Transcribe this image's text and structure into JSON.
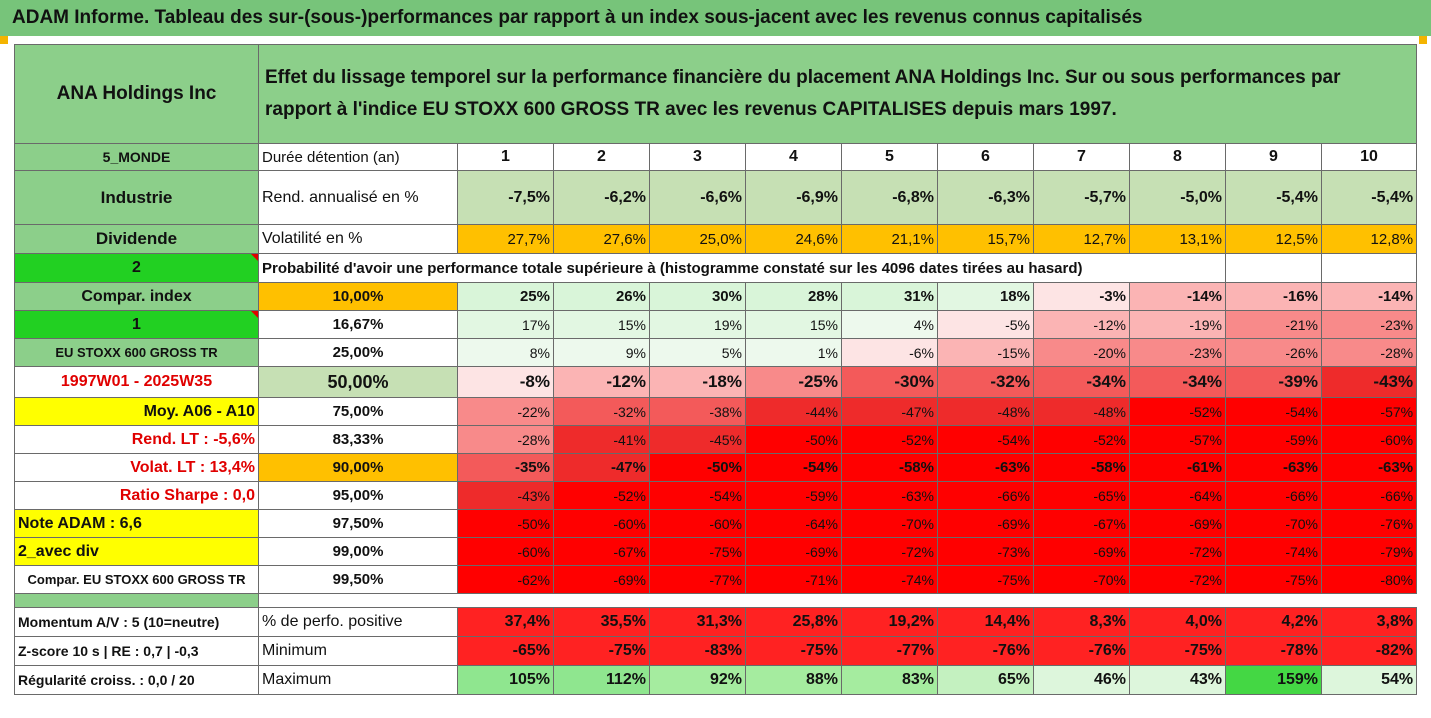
{
  "header": {
    "title": "ADAM Informe. Tableau des sur-(sous-)performances par rapport à un index sous-jacent avec les revenus connus capitalisés"
  },
  "company": "ANA Holdings Inc",
  "description": "Effet du lissage temporel sur la performance financière du placement ANA Holdings Inc. Sur ou sous performances par rapport à l'indice EU STOXX 600 GROSS TR avec les revenus CAPITALISES depuis mars 1997.",
  "years_row": {
    "left": "5_MONDE",
    "label": "Durée détention (an)",
    "values": [
      "1",
      "2",
      "3",
      "4",
      "5",
      "6",
      "7",
      "8",
      "9",
      "10"
    ]
  },
  "rend_row": {
    "left": "Industrie",
    "label": "Rend. annualisé en %",
    "values": [
      "-7,5%",
      "-6,2%",
      "-6,6%",
      "-6,9%",
      "-6,8%",
      "-6,3%",
      "-5,7%",
      "-5,0%",
      "-5,4%",
      "-5,4%"
    ]
  },
  "vol_row": {
    "left": "Dividende",
    "label": "Volatilité en %",
    "values": [
      "27,7%",
      "27,6%",
      "25,0%",
      "24,6%",
      "21,1%",
      "15,7%",
      "12,7%",
      "13,1%",
      "12,5%",
      "12,8%"
    ]
  },
  "prob_row": {
    "left": "2",
    "text": "Probabilité d'avoir une performance totale supérieure à (histogramme constaté sur les 4096 dates tirées au hasard)"
  },
  "percentile_rows": [
    {
      "left": "Compar. index",
      "pct": "10,00%",
      "values": [
        "25%",
        "26%",
        "30%",
        "28%",
        "31%",
        "18%",
        "-3%",
        "-14%",
        "-16%",
        "-14%"
      ]
    },
    {
      "left": "1",
      "pct": "16,67%",
      "values": [
        "17%",
        "15%",
        "19%",
        "15%",
        "4%",
        "-5%",
        "-12%",
        "-19%",
        "-21%",
        "-23%"
      ]
    },
    {
      "left": "EU STOXX 600 GROSS TR",
      "pct": "25,00%",
      "values": [
        "8%",
        "9%",
        "5%",
        "1%",
        "-6%",
        "-15%",
        "-20%",
        "-23%",
        "-26%",
        "-28%"
      ]
    },
    {
      "left": "1997W01 - 2025W35",
      "pct": "50,00%",
      "values": [
        "-8%",
        "-12%",
        "-18%",
        "-25%",
        "-30%",
        "-32%",
        "-34%",
        "-34%",
        "-39%",
        "-43%"
      ]
    },
    {
      "left": "Moy. A06 - A10",
      "pct": "75,00%",
      "values": [
        "-22%",
        "-32%",
        "-38%",
        "-44%",
        "-47%",
        "-48%",
        "-48%",
        "-52%",
        "-54%",
        "-57%"
      ]
    },
    {
      "left": "Rend. LT :   -5,6%",
      "pct": "83,33%",
      "values": [
        "-28%",
        "-41%",
        "-45%",
        "-50%",
        "-52%",
        "-54%",
        "-52%",
        "-57%",
        "-59%",
        "-60%"
      ]
    },
    {
      "left": "Volat. LT :   13,4%",
      "pct": "90,00%",
      "values": [
        "-35%",
        "-47%",
        "-50%",
        "-54%",
        "-58%",
        "-63%",
        "-58%",
        "-61%",
        "-63%",
        "-63%"
      ]
    },
    {
      "left": "Ratio Sharpe :   0,0",
      "pct": "95,00%",
      "values": [
        "-43%",
        "-52%",
        "-54%",
        "-59%",
        "-63%",
        "-66%",
        "-65%",
        "-64%",
        "-66%",
        "-66%"
      ]
    },
    {
      "left": "Note ADAM : 6,6",
      "pct": "97,50%",
      "values": [
        "-50%",
        "-60%",
        "-60%",
        "-64%",
        "-70%",
        "-69%",
        "-67%",
        "-69%",
        "-70%",
        "-76%"
      ]
    },
    {
      "left": "2_avec div",
      "pct": "99,00%",
      "values": [
        "-60%",
        "-67%",
        "-75%",
        "-69%",
        "-72%",
        "-73%",
        "-69%",
        "-72%",
        "-74%",
        "-79%"
      ]
    },
    {
      "left": "Compar. EU STOXX 600 GROSS TR",
      "pct": "99,50%",
      "values": [
        "-62%",
        "-69%",
        "-77%",
        "-71%",
        "-74%",
        "-75%",
        "-70%",
        "-72%",
        "-75%",
        "-80%"
      ]
    }
  ],
  "bottom_rows": [
    {
      "left": "Momentum A/V : 5 (10=neutre)",
      "label": "% de perfo. positive",
      "values": [
        "37,4%",
        "35,5%",
        "31,3%",
        "25,8%",
        "19,2%",
        "14,4%",
        "8,3%",
        "4,0%",
        "4,2%",
        "3,8%"
      ]
    },
    {
      "left": "Z-score 10 s  |  RE : 0,7  |  -0,3",
      "label": "Minimum",
      "values": [
        "-65%",
        "-75%",
        "-83%",
        "-75%",
        "-77%",
        "-76%",
        "-76%",
        "-75%",
        "-78%",
        "-82%"
      ]
    },
    {
      "left": "Régularité croiss. : 0,0 / 20",
      "label": "Maximum",
      "values": [
        "105%",
        "112%",
        "92%",
        "88%",
        "83%",
        "65%",
        "46%",
        "43%",
        "159%",
        "54%"
      ]
    }
  ],
  "colors": {
    "green_header": "#77c47a",
    "bright_green": "#22d022",
    "yellow": "#ffff00",
    "orange": "#ffc000",
    "red_strong": "#ff0000"
  }
}
